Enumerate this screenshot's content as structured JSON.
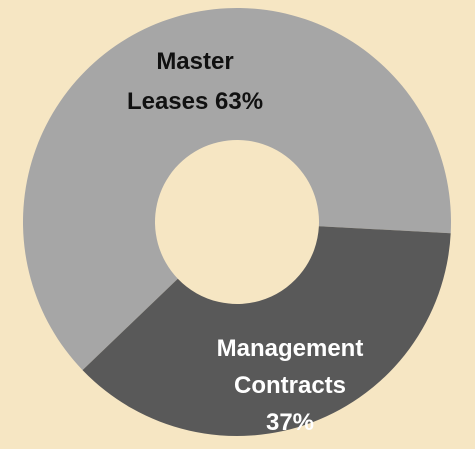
{
  "chart_data": {
    "type": "donut",
    "categories": [
      "Master Leases",
      "Management Contracts"
    ],
    "values": [
      63,
      37
    ],
    "value_labels": [
      "63%",
      "37%"
    ],
    "colors": [
      "#a6a6a6",
      "#595959"
    ]
  }
}
